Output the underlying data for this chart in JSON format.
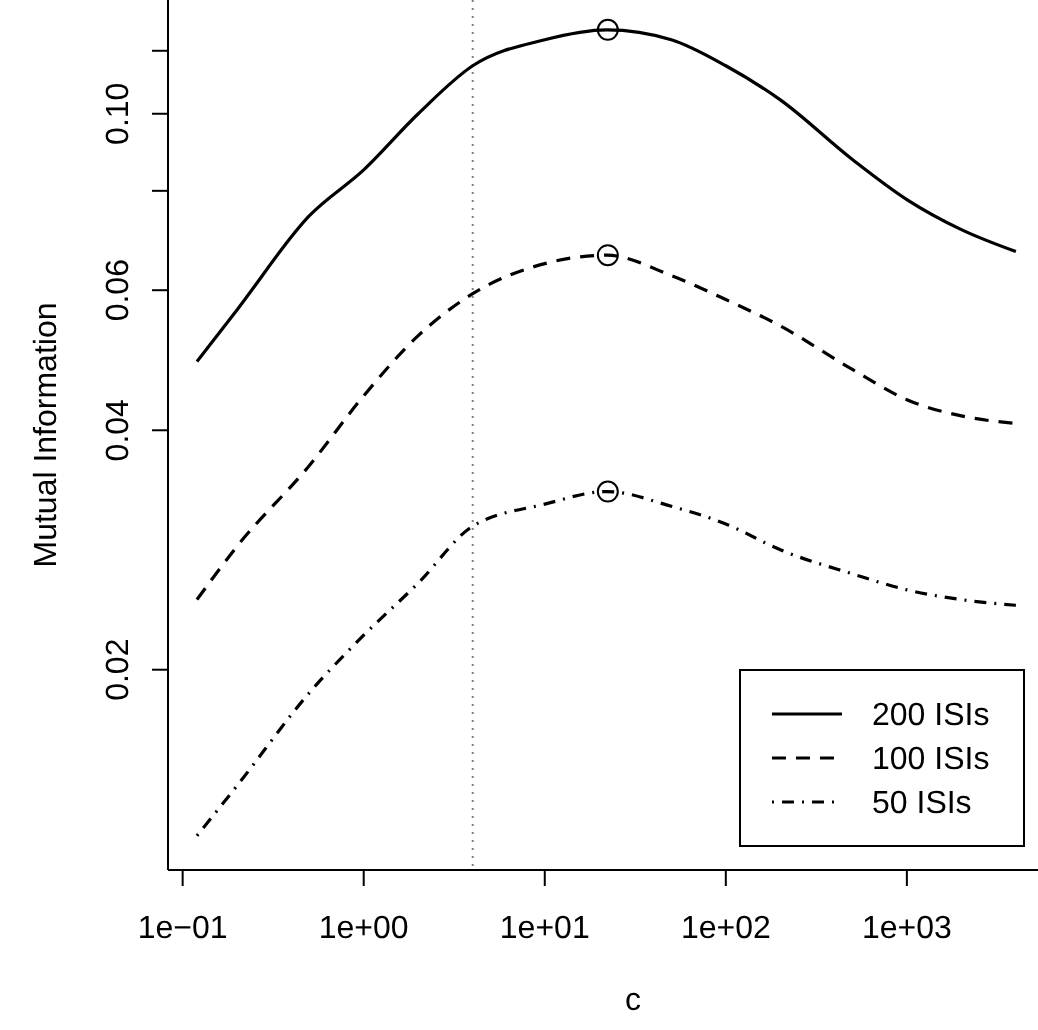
{
  "chart_data": {
    "type": "line",
    "xlabel": "c",
    "ylabel": "Mutual Information",
    "log": "xy",
    "xlim": [
      0.083,
      5300
    ],
    "ylim": [
      0.0112,
      0.139
    ],
    "xticks": [
      {
        "value": 0.1,
        "label": "1e−01"
      },
      {
        "value": 1,
        "label": "1e+00"
      },
      {
        "value": 10,
        "label": "1e+01"
      },
      {
        "value": 100,
        "label": "1e+02"
      },
      {
        "value": 1000,
        "label": "1e+03"
      }
    ],
    "yticks": [
      {
        "value": 0.02,
        "label": "0.02"
      },
      {
        "value": 0.04,
        "label": "0.04"
      },
      {
        "value": 0.06,
        "label": "0.06"
      },
      {
        "value": 0.08,
        "label": null
      },
      {
        "value": 0.1,
        "label": "0.10"
      },
      {
        "value": 0.12,
        "label": null
      }
    ],
    "grid": false,
    "legend": "bottom right",
    "marker": "none",
    "ref_lines": [
      {
        "axis": "x",
        "value": 4,
        "color": "#808080",
        "line_style": "dotted"
      }
    ],
    "series": [
      {
        "name": "200 ISIs",
        "color": "#000000",
        "line_style": "solid",
        "x": [
          0.12,
          0.2,
          0.5,
          1,
          2,
          4,
          10,
          22,
          50,
          100,
          200,
          500,
          1000,
          2000,
          4000
        ],
        "values": [
          0.0488,
          0.0567,
          0.0744,
          0.085,
          0.1,
          0.1149,
          0.1239,
          0.1275,
          0.1239,
          0.1149,
          0.1041,
          0.0876,
          0.078,
          0.0715,
          0.0671
        ]
      },
      {
        "name": "100 ISIs",
        "color": "#000000",
        "line_style": "dashed",
        "x": [
          0.12,
          0.2,
          0.5,
          1,
          2,
          4,
          10,
          22,
          50,
          100,
          200,
          500,
          1000,
          2000,
          4000
        ],
        "values": [
          0.0245,
          0.0286,
          0.0361,
          0.0442,
          0.0526,
          0.0594,
          0.0648,
          0.0664,
          0.0626,
          0.0584,
          0.0541,
          0.0477,
          0.0437,
          0.0417,
          0.0408
        ]
      },
      {
        "name": "50 ISIs",
        "color": "#000000",
        "line_style": "dashdot",
        "x": [
          0.12,
          0.2,
          0.5,
          1,
          2,
          4,
          10,
          22,
          50,
          100,
          200,
          500,
          1000,
          2000,
          4000
        ],
        "values": [
          0.01237,
          0.0143,
          0.0187,
          0.0221,
          0.0257,
          0.0303,
          0.0323,
          0.0335,
          0.0321,
          0.0305,
          0.0283,
          0.0264,
          0.0252,
          0.0245,
          0.0241
        ]
      },
      {
        "type": "scatter",
        "marker": "circle",
        "color": "#000000",
        "x": [
          22.3,
          22.3,
          22.3
        ],
        "values": [
          0.1275,
          0.0664,
          0.0335
        ]
      }
    ]
  }
}
